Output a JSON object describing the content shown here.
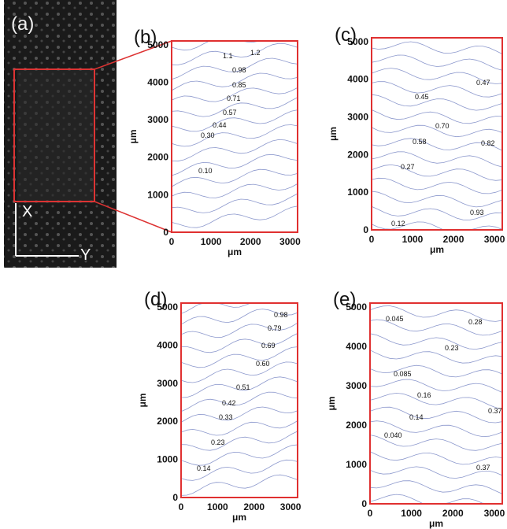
{
  "panel_a": {
    "label": "(a)",
    "axis_x": "X",
    "axis_y": "Y"
  },
  "panels": [
    {
      "label": "(b)",
      "xticks": [
        0,
        1000,
        2000,
        3000
      ],
      "yticks": [
        0,
        1000,
        2000,
        3000,
        4000,
        5000
      ],
      "xlabel": "μm",
      "ylabel": "μm",
      "contour_labels": [
        "1.1",
        "1.2",
        "0.98",
        "0.85",
        "0.71",
        "0.57",
        "0.44",
        "0.30",
        "0.10"
      ]
    },
    {
      "label": "(c)",
      "xticks": [
        0,
        1000,
        2000,
        3000
      ],
      "yticks": [
        0,
        1000,
        2000,
        3000,
        4000,
        5000
      ],
      "xlabel": "μm",
      "ylabel": "μm",
      "contour_labels": [
        "0.47",
        "0.45",
        "0.70",
        "0.58",
        "0.82",
        "0.27",
        "0.93",
        "0.12"
      ]
    },
    {
      "label": "(d)",
      "xticks": [
        0,
        1000,
        2000,
        3000
      ],
      "yticks": [
        0,
        1000,
        2000,
        3000,
        4000,
        5000
      ],
      "xlabel": "μm",
      "ylabel": "μm",
      "contour_labels": [
        "0.98",
        "0.79",
        "0.69",
        "0.60",
        "0.51",
        "0.42",
        "0.33",
        "0.23",
        "0.14"
      ]
    },
    {
      "label": "(e)",
      "xticks": [
        0,
        1000,
        2000,
        3000
      ],
      "yticks": [
        0,
        1000,
        2000,
        3000,
        4000,
        5000
      ],
      "xlabel": "μm",
      "ylabel": "μm",
      "contour_labels": [
        "0.045",
        "0.28",
        "0.23",
        "0.085",
        "0.16",
        "0.14",
        "0.37",
        "0.040",
        "0.37"
      ]
    }
  ]
}
